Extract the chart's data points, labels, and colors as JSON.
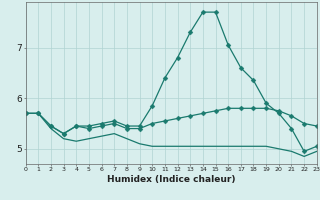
{
  "xlabel": "Humidex (Indice chaleur)",
  "x": [
    0,
    1,
    2,
    3,
    4,
    5,
    6,
    7,
    8,
    9,
    10,
    11,
    12,
    13,
    14,
    15,
    16,
    17,
    18,
    19,
    20,
    21,
    22,
    23
  ],
  "line1": [
    5.7,
    5.7,
    5.45,
    5.3,
    5.45,
    5.45,
    5.5,
    5.55,
    5.45,
    5.45,
    5.85,
    6.4,
    6.8,
    7.3,
    7.7,
    7.7,
    7.05,
    6.6,
    6.35,
    5.9,
    5.7,
    5.4,
    4.95,
    5.05
  ],
  "line2": [
    5.7,
    5.7,
    5.45,
    5.3,
    5.45,
    5.4,
    5.45,
    5.5,
    5.4,
    5.4,
    5.5,
    5.55,
    5.6,
    5.65,
    5.7,
    5.75,
    5.8,
    5.8,
    5.8,
    5.8,
    5.75,
    5.65,
    5.5,
    5.45
  ],
  "line3": [
    5.7,
    5.7,
    5.4,
    5.2,
    5.15,
    5.2,
    5.25,
    5.3,
    5.2,
    5.1,
    5.05,
    5.05,
    5.05,
    5.05,
    5.05,
    5.05,
    5.05,
    5.05,
    5.05,
    5.05,
    5.0,
    4.95,
    4.85,
    4.95
  ],
  "line_color": "#1a7a6e",
  "bg_color": "#d8eeed",
  "grid_color": "#b0d4d2",
  "ylim": [
    4.7,
    7.9
  ],
  "yticks": [
    5,
    6,
    7
  ],
  "xlim": [
    0,
    23
  ]
}
